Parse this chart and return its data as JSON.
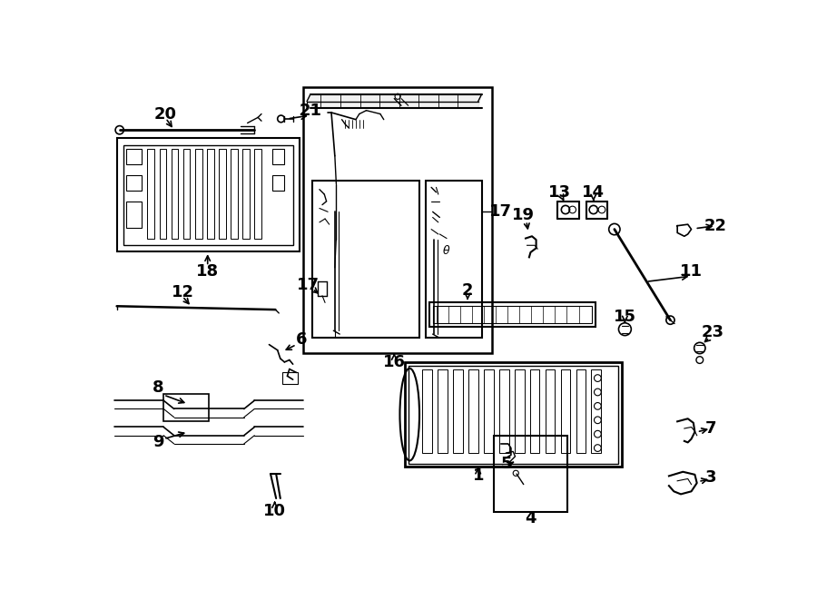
{
  "bg_color": "#ffffff",
  "line_color": "#000000",
  "fig_width": 9.0,
  "fig_height": 6.61
}
